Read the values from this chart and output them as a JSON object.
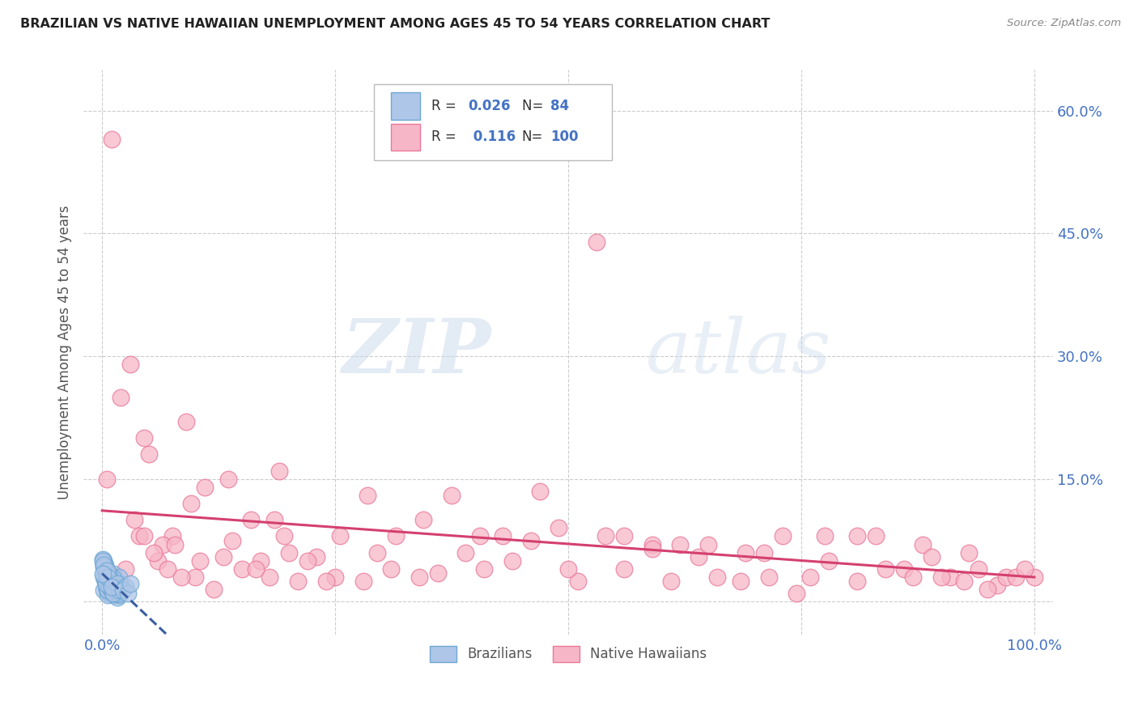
{
  "title": "BRAZILIAN VS NATIVE HAWAIIAN UNEMPLOYMENT AMONG AGES 45 TO 54 YEARS CORRELATION CHART",
  "source": "Source: ZipAtlas.com",
  "ylabel": "Unemployment Among Ages 45 to 54 years",
  "xlabel": "",
  "xlim": [
    -0.02,
    1.02
  ],
  "ylim": [
    -0.04,
    0.65
  ],
  "yticks": [
    0.0,
    0.15,
    0.3,
    0.45,
    0.6
  ],
  "yticklabels": [
    "",
    "15.0%",
    "30.0%",
    "45.0%",
    "60.0%"
  ],
  "xticks": [
    0.0,
    0.25,
    0.5,
    0.75,
    1.0
  ],
  "xticklabels": [
    "0.0%",
    "",
    "",
    "",
    "100.0%"
  ],
  "brazilian_color": "#aec6e8",
  "native_hawaiian_color": "#f7b6c8",
  "brazilian_edge": "#6fa8d4",
  "native_hawaiian_edge": "#e8799a",
  "trend_brazilian_color": "#3a5fa0",
  "trend_native_hawaiian_color": "#d44070",
  "R_brazilian": 0.026,
  "N_brazilian": 84,
  "R_native_hawaiian": 0.116,
  "N_native_hawaiian": 100,
  "watermark_zip": "ZIP",
  "watermark_atlas": "atlas",
  "legend_label_1": "Brazilians",
  "legend_label_2": "Native Hawaiians",
  "brazilian_x": [
    0.005,
    0.008,
    0.01,
    0.012,
    0.003,
    0.006,
    0.015,
    0.009,
    0.004,
    0.002,
    0.007,
    0.003,
    0.011,
    0.008,
    0.005,
    0.013,
    0.002,
    0.009,
    0.006,
    0.003,
    0.014,
    0.016,
    0.01,
    0.005,
    0.003,
    0.008,
    0.012,
    0.018,
    0.006,
    0.011,
    0.002,
    0.009,
    0.013,
    0.005,
    0.017,
    0.01,
    0.015,
    0.007,
    0.003,
    0.006,
    0.019,
    0.012,
    0.008,
    0.002,
    0.01,
    0.014,
    0.004,
    0.016,
    0.007,
    0.013,
    0.001,
    0.009,
    0.015,
    0.004,
    0.007,
    0.02,
    0.002,
    0.012,
    0.018,
    0.01,
    0.005,
    0.015,
    0.008,
    0.001,
    0.013,
    0.011,
    0.017,
    0.004,
    0.007,
    0.014,
    0.002,
    0.021,
    0.009,
    0.005,
    0.012,
    0.006,
    0.018,
    0.016,
    0.001,
    0.01,
    0.025,
    0.022,
    0.028,
    0.03
  ],
  "brazilian_y": [
    0.02,
    0.01,
    0.015,
    0.008,
    0.025,
    0.03,
    0.012,
    0.028,
    0.018,
    0.014,
    0.035,
    0.045,
    0.022,
    0.01,
    0.038,
    0.015,
    0.03,
    0.02,
    0.008,
    0.025,
    0.01,
    0.005,
    0.02,
    0.015,
    0.04,
    0.03,
    0.018,
    0.008,
    0.032,
    0.025,
    0.05,
    0.012,
    0.022,
    0.038,
    0.018,
    0.03,
    0.01,
    0.026,
    0.042,
    0.014,
    0.022,
    0.034,
    0.018,
    0.045,
    0.014,
    0.026,
    0.038,
    0.01,
    0.03,
    0.018,
    0.052,
    0.022,
    0.014,
    0.034,
    0.026,
    0.018,
    0.042,
    0.01,
    0.03,
    0.022,
    0.038,
    0.014,
    0.026,
    0.05,
    0.018,
    0.03,
    0.01,
    0.022,
    0.034,
    0.014,
    0.045,
    0.018,
    0.026,
    0.038,
    0.01,
    0.03,
    0.014,
    0.022,
    0.034,
    0.018,
    0.018,
    0.014,
    0.01,
    0.022
  ],
  "native_hawaiian_x": [
    0.005,
    0.06,
    0.02,
    0.1,
    0.035,
    0.13,
    0.075,
    0.05,
    0.15,
    0.09,
    0.18,
    0.11,
    0.14,
    0.03,
    0.17,
    0.065,
    0.095,
    0.21,
    0.045,
    0.16,
    0.25,
    0.195,
    0.23,
    0.31,
    0.2,
    0.12,
    0.28,
    0.185,
    0.36,
    0.24,
    0.41,
    0.295,
    0.34,
    0.46,
    0.39,
    0.51,
    0.43,
    0.56,
    0.49,
    0.61,
    0.66,
    0.54,
    0.71,
    0.59,
    0.76,
    0.64,
    0.81,
    0.69,
    0.86,
    0.73,
    0.91,
    0.78,
    0.96,
    0.83,
    1.0,
    0.88,
    0.93,
    0.97,
    0.89,
    0.94,
    0.01,
    0.04,
    0.07,
    0.025,
    0.055,
    0.085,
    0.015,
    0.045,
    0.078,
    0.105,
    0.135,
    0.165,
    0.19,
    0.22,
    0.255,
    0.285,
    0.315,
    0.345,
    0.375,
    0.405,
    0.44,
    0.47,
    0.5,
    0.53,
    0.56,
    0.59,
    0.62,
    0.65,
    0.685,
    0.715,
    0.745,
    0.775,
    0.81,
    0.84,
    0.87,
    0.9,
    0.925,
    0.95,
    0.98,
    0.99
  ],
  "native_hawaiian_y": [
    0.15,
    0.05,
    0.25,
    0.03,
    0.1,
    0.055,
    0.08,
    0.18,
    0.04,
    0.22,
    0.03,
    0.14,
    0.075,
    0.29,
    0.05,
    0.07,
    0.12,
    0.025,
    0.2,
    0.1,
    0.03,
    0.08,
    0.055,
    0.04,
    0.06,
    0.015,
    0.025,
    0.1,
    0.035,
    0.025,
    0.04,
    0.06,
    0.03,
    0.075,
    0.06,
    0.025,
    0.08,
    0.04,
    0.09,
    0.025,
    0.03,
    0.08,
    0.06,
    0.07,
    0.03,
    0.055,
    0.08,
    0.06,
    0.04,
    0.08,
    0.03,
    0.05,
    0.02,
    0.08,
    0.03,
    0.07,
    0.06,
    0.03,
    0.055,
    0.04,
    0.565,
    0.08,
    0.04,
    0.04,
    0.06,
    0.03,
    0.02,
    0.08,
    0.07,
    0.05,
    0.15,
    0.04,
    0.16,
    0.05,
    0.08,
    0.13,
    0.08,
    0.1,
    0.13,
    0.08,
    0.05,
    0.135,
    0.04,
    0.44,
    0.08,
    0.065,
    0.07,
    0.07,
    0.025,
    0.03,
    0.01,
    0.08,
    0.025,
    0.04,
    0.03,
    0.03,
    0.025,
    0.015,
    0.03,
    0.04
  ]
}
